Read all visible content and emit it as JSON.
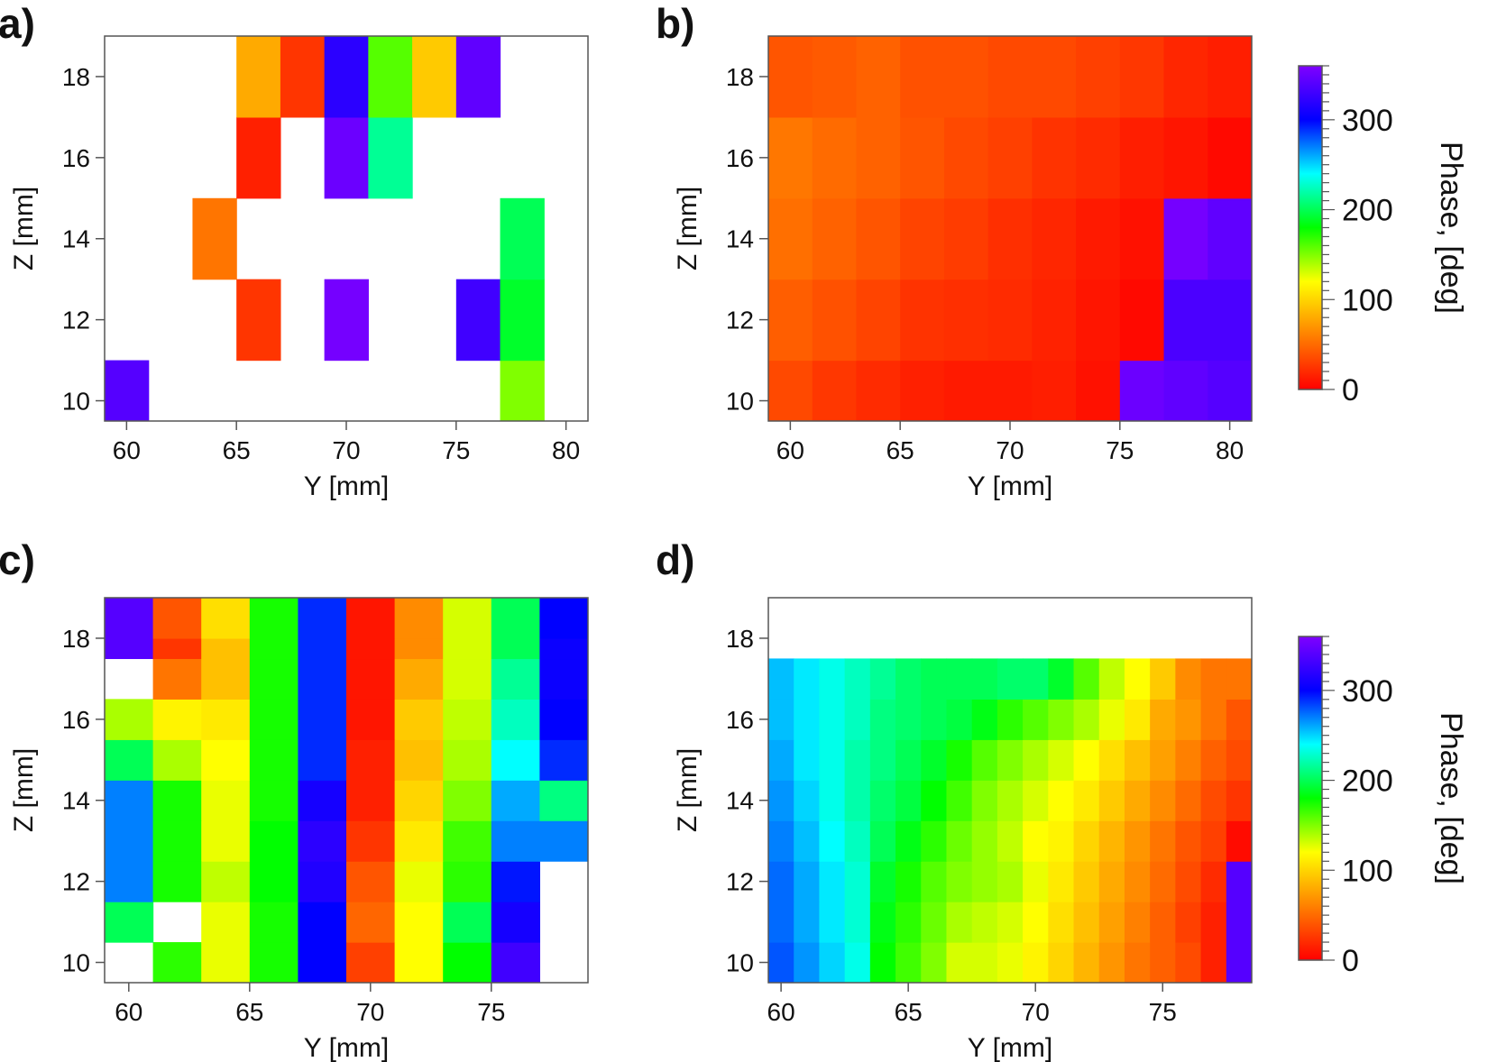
{
  "colorbar": {
    "label": "Phase, [deg]",
    "ticks": [
      0,
      100,
      200,
      300
    ],
    "range": [
      0,
      360
    ],
    "colors": [
      "#ff0000",
      "#ff8000",
      "#ffff00",
      "#00ff00",
      "#00ffff",
      "#0000ff",
      "#8000ff"
    ]
  },
  "chart_data": [
    {
      "id": "a",
      "panel_label": "a)",
      "type": "heatmap",
      "xlabel": "Y [mm]",
      "ylabel": "Z [mm]",
      "xlim": [
        59,
        81
      ],
      "ylim": [
        9.5,
        19
      ],
      "xticks": [
        60,
        65,
        70,
        75,
        80
      ],
      "yticks": [
        10,
        12,
        14,
        16,
        18
      ],
      "x": [
        60,
        62,
        64,
        66,
        68,
        70,
        72,
        74,
        76,
        78,
        80
      ],
      "y": [
        10,
        12,
        14,
        16,
        18
      ],
      "cell_dx": 2,
      "cell_dz": 2,
      "z": [
        [
          340,
          null,
          null,
          null,
          null,
          null,
          null,
          null,
          null,
          150,
          null
        ],
        [
          null,
          null,
          null,
          25,
          null,
          355,
          null,
          null,
          330,
          190,
          null
        ],
        [
          null,
          null,
          55,
          null,
          null,
          null,
          null,
          null,
          null,
          200,
          null
        ],
        [
          null,
          null,
          null,
          15,
          null,
          350,
          215,
          null,
          null,
          null,
          null
        ],
        [
          null,
          null,
          null,
          80,
          25,
          320,
          160,
          95,
          345,
          null,
          null
        ]
      ]
    },
    {
      "id": "b",
      "panel_label": "b)",
      "type": "heatmap",
      "xlabel": "Y [mm]",
      "ylabel": "Z [mm]",
      "xlim": [
        59,
        81
      ],
      "ylim": [
        9.5,
        19
      ],
      "xticks": [
        60,
        65,
        70,
        75,
        80
      ],
      "yticks": [
        10,
        12,
        14,
        16,
        18
      ],
      "x": [
        60,
        62,
        64,
        66,
        68,
        70,
        72,
        74,
        76,
        78,
        80
      ],
      "y": [
        10,
        12,
        14,
        16,
        18
      ],
      "cell_dx": 2,
      "cell_dz": 2,
      "z": [
        [
          34,
          26,
          20,
          15,
          12,
          12,
          14,
          8,
          350,
          345,
          340
        ],
        [
          44,
          38,
          32,
          24,
          22,
          20,
          16,
          10,
          4,
          335,
          335
        ],
        [
          52,
          46,
          40,
          32,
          28,
          22,
          18,
          12,
          8,
          355,
          345
        ],
        [
          56,
          50,
          46,
          40,
          34,
          30,
          24,
          20,
          14,
          10,
          4
        ],
        [
          40,
          42,
          46,
          38,
          38,
          34,
          34,
          30,
          26,
          18,
          14
        ]
      ]
    },
    {
      "id": "c",
      "panel_label": "c)",
      "type": "heatmap",
      "xlabel": "Y [mm]",
      "ylabel": "Z [mm]",
      "xlim": [
        59,
        79
      ],
      "ylim": [
        9.5,
        19
      ],
      "xticks": [
        60,
        65,
        70,
        75
      ],
      "yticks": [
        10,
        12,
        14,
        16,
        18
      ],
      "x": [
        60,
        62,
        64,
        66,
        68,
        70,
        72,
        74,
        76,
        78
      ],
      "y": [
        10,
        11,
        12,
        13,
        14,
        15,
        16,
        17,
        18,
        18.75
      ],
      "cell_dx": 2,
      "cell_dz": 1,
      "z": [
        [
          null,
          170,
          125,
          175,
          300,
          30,
          120,
          180,
          330,
          null
        ],
        [
          200,
          null,
          125,
          175,
          300,
          48,
          120,
          200,
          310,
          null
        ],
        [
          270,
          175,
          135,
          180,
          315,
          40,
          125,
          170,
          295,
          null
        ],
        [
          270,
          175,
          125,
          180,
          320,
          25,
          110,
          165,
          270,
          270
        ],
        [
          270,
          175,
          125,
          175,
          310,
          15,
          100,
          150,
          260,
          210
        ],
        [
          200,
          140,
          120,
          175,
          290,
          15,
          90,
          140,
          240,
          290
        ],
        [
          140,
          115,
          110,
          175,
          290,
          10,
          95,
          135,
          225,
          300
        ],
        [
          null,
          55,
          90,
          175,
          290,
          10,
          80,
          130,
          215,
          305
        ],
        [
          340,
          25,
          90,
          175,
          290,
          10,
          65,
          130,
          200,
          305
        ],
        [
          340,
          40,
          105,
          175,
          290,
          10,
          65,
          130,
          200,
          300
        ]
      ]
    },
    {
      "id": "d",
      "panel_label": "d)",
      "type": "heatmap",
      "xlabel": "Y [mm]",
      "ylabel": "Z [mm]",
      "xlim": [
        59.5,
        78.5
      ],
      "ylim": [
        9.5,
        19
      ],
      "xticks": [
        60,
        65,
        70,
        75
      ],
      "yticks": [
        10,
        12,
        14,
        16,
        18
      ],
      "x": [
        60,
        61,
        62,
        63,
        64,
        65,
        66,
        67,
        68,
        69,
        70,
        71,
        72,
        73,
        74,
        75,
        76,
        77,
        78
      ],
      "y": [
        10,
        11,
        12,
        13,
        14,
        15,
        16,
        17
      ],
      "cell_dx": 1,
      "cell_dz": 1,
      "z": [
        [
          280,
          265,
          250,
          235,
          180,
          165,
          150,
          130,
          130,
          125,
          115,
          100,
          85,
          70,
          55,
          45,
          35,
          15,
          340
        ],
        [
          275,
          260,
          245,
          230,
          185,
          170,
          155,
          140,
          135,
          130,
          120,
          105,
          90,
          75,
          60,
          45,
          30,
          15,
          340
        ],
        [
          275,
          260,
          245,
          230,
          190,
          175,
          160,
          150,
          145,
          140,
          125,
          110,
          95,
          80,
          65,
          50,
          35,
          20,
          340
        ],
        [
          270,
          255,
          240,
          225,
          200,
          185,
          170,
          155,
          145,
          135,
          120,
          115,
          100,
          85,
          70,
          55,
          40,
          30,
          5
        ],
        [
          265,
          250,
          235,
          220,
          205,
          195,
          180,
          165,
          150,
          140,
          130,
          120,
          110,
          95,
          80,
          65,
          50,
          35,
          25
        ],
        [
          260,
          245,
          235,
          220,
          210,
          200,
          190,
          175,
          160,
          150,
          140,
          130,
          120,
          105,
          90,
          75,
          60,
          45,
          35
        ],
        [
          255,
          245,
          235,
          225,
          210,
          205,
          200,
          195,
          185,
          170,
          160,
          150,
          140,
          125,
          110,
          80,
          70,
          55,
          40
        ],
        [
          255,
          245,
          235,
          225,
          215,
          205,
          200,
          200,
          200,
          205,
          205,
          190,
          160,
          135,
          120,
          95,
          65,
          55,
          55
        ]
      ]
    }
  ]
}
